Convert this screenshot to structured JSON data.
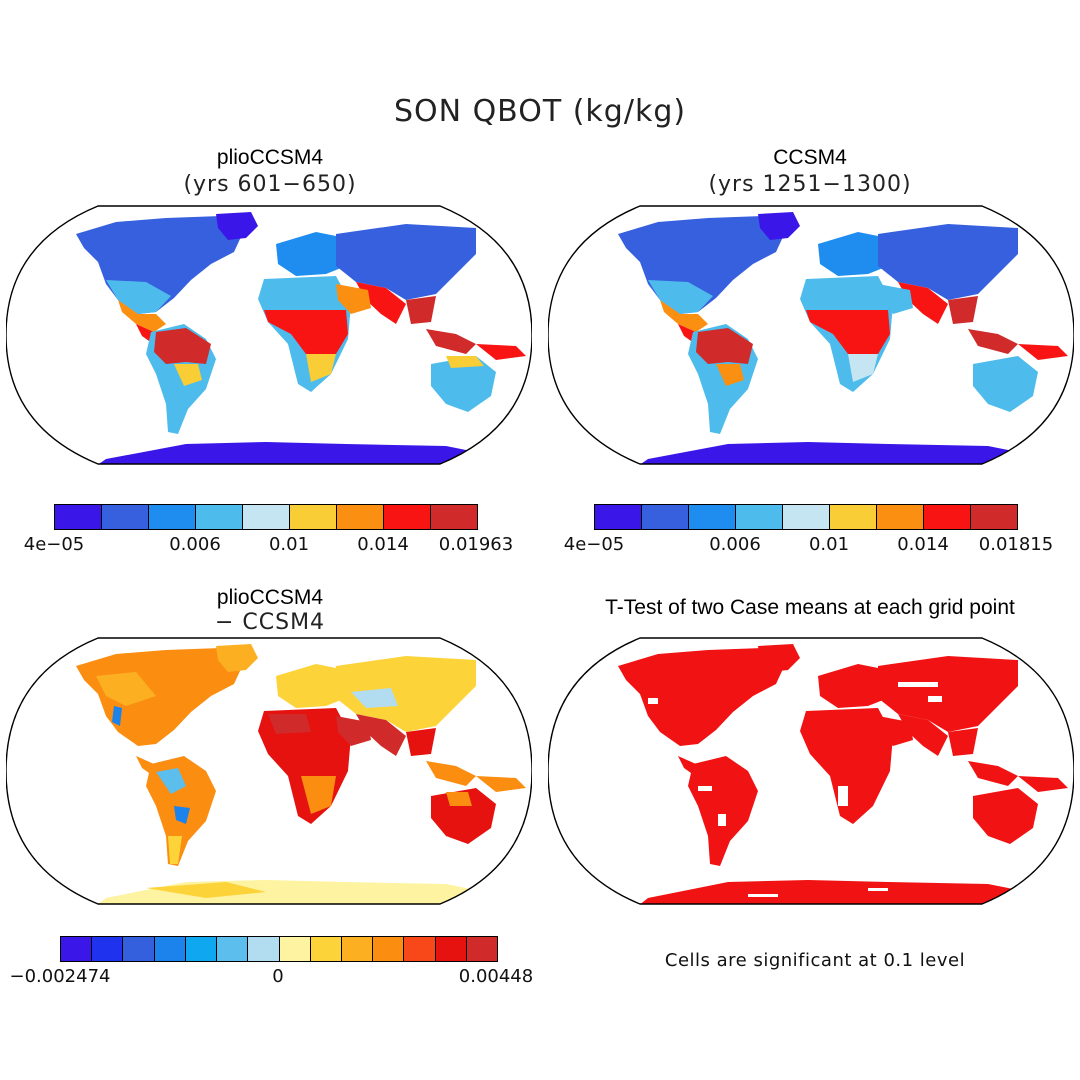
{
  "title": "SON QBOT (kg/kg)",
  "panels": {
    "plio": {
      "title": "plioCCSM4",
      "subtitle": "(yrs 601−650)"
    },
    "ccsm": {
      "title": "CCSM4",
      "subtitle": "(yrs 1251−1300)"
    },
    "diff": {
      "title": "plioCCSM4",
      "subtitle": "− CCSM4"
    },
    "ttest": {
      "title": "T-Test of two Case means at each grid point"
    }
  },
  "colorbars": {
    "plio": {
      "colors": [
        "#3a17e8",
        "#3760df",
        "#1f8df0",
        "#4dbbeb",
        "#c6e5f2",
        "#f8cd35",
        "#fb8f12",
        "#f91414",
        "#d02a2a"
      ],
      "labels": [
        "4e−05",
        "0.006",
        "0.01",
        "0.014",
        "0.01963"
      ]
    },
    "ccsm": {
      "colors": [
        "#3a17e8",
        "#3760df",
        "#1f8df0",
        "#4dbbeb",
        "#c6e5f2",
        "#f8cd35",
        "#fb8f12",
        "#f91414",
        "#d02a2a"
      ],
      "labels": [
        "4e−05",
        "0.006",
        "0.01",
        "0.014",
        "0.01815"
      ]
    },
    "diff": {
      "colors": [
        "#3a17e8",
        "#1f33ee",
        "#3560dd",
        "#1c82ec",
        "#0fa8f0",
        "#5bbeec",
        "#b2dcef",
        "#fdf3a0",
        "#fdd33a",
        "#fcb021",
        "#fb8d10",
        "#f8481a",
        "#e5120f",
        "#d02a2a"
      ],
      "labels": [
        "−0.002474",
        "0",
        "0.00448"
      ]
    }
  },
  "note": "Cells are significant at 0.1 level"
}
